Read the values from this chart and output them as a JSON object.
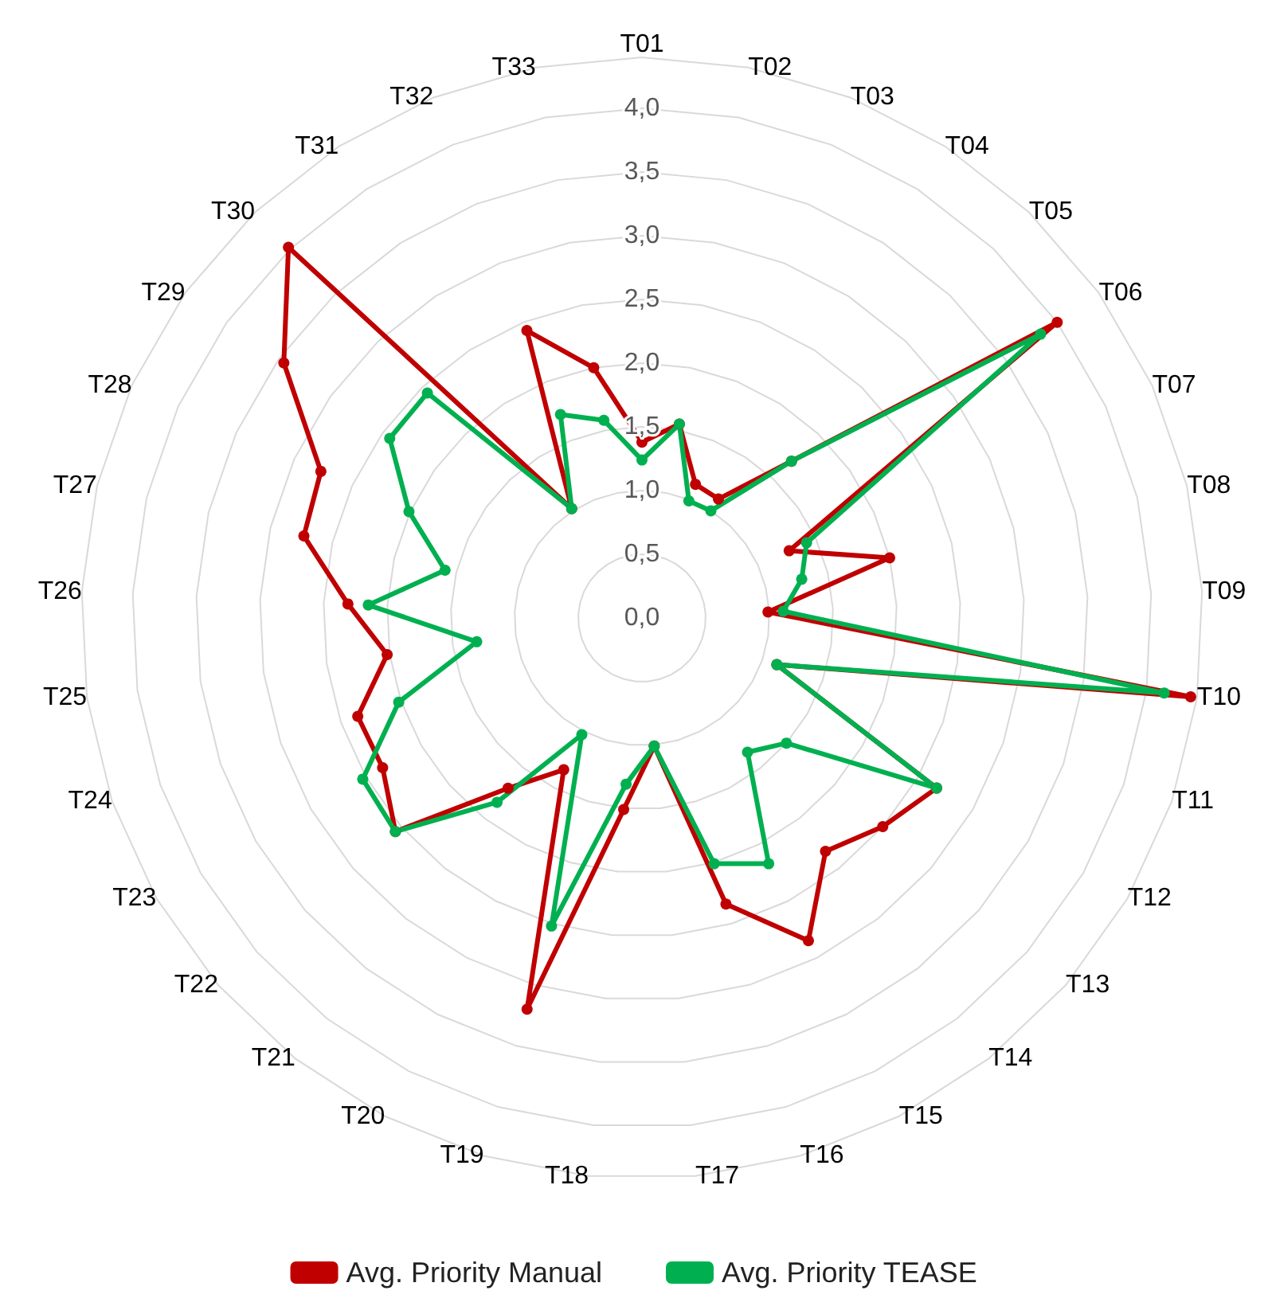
{
  "chart_data": {
    "type": "radar",
    "categories": [
      "T01",
      "T02",
      "T03",
      "T04",
      "T05",
      "T06",
      "T07",
      "T08",
      "T09",
      "T10",
      "T11",
      "T12",
      "T13",
      "T14",
      "T15",
      "T16",
      "T17",
      "T18",
      "T19",
      "T20",
      "T21",
      "T22",
      "T23",
      "T24",
      "T25",
      "T26",
      "T27",
      "T28",
      "T29",
      "T30",
      "T31",
      "T32",
      "T33"
    ],
    "series": [
      {
        "name": "Avg. Priority Manual",
        "color": "#c00000",
        "values": [
          1.38,
          1.55,
          1.13,
          1.11,
          1.7,
          4.0,
          1.27,
          2.0,
          0.99,
          4.35,
          1.12,
          2.67,
          2.5,
          2.33,
          2.85,
          2.34,
          1.01,
          1.51,
          3.2,
          1.34,
          1.7,
          2.56,
          2.35,
          2.36,
          2.02,
          2.31,
          2.73,
          2.77,
          3.45,
          4.02,
          1.02,
          2.43,
          2.0
        ]
      },
      {
        "name": "Avg. Priority TEASE",
        "color": "#00b050",
        "values": [
          1.24,
          1.55,
          0.99,
          1.0,
          1.7,
          3.84,
          1.42,
          1.29,
          1.11,
          4.14,
          1.12,
          2.67,
          1.5,
          1.34,
          2.17,
          2.01,
          1.01,
          1.31,
          2.52,
          1.03,
          1.84,
          2.56,
          2.53,
          2.02,
          1.31,
          2.15,
          1.59,
          2.01,
          2.43,
          2.44,
          1.02,
          1.72,
          1.58
        ]
      }
    ],
    "ylim": [
      0,
      4.4
    ],
    "yticks": [
      {
        "value": 0,
        "label": "0,0"
      },
      {
        "value": 0.5,
        "label": "0,5"
      },
      {
        "value": 1,
        "label": "1,0"
      },
      {
        "value": 1.5,
        "label": "1,5"
      },
      {
        "value": 2,
        "label": "2,0"
      },
      {
        "value": 2.5,
        "label": "2,5"
      },
      {
        "value": 3,
        "label": "3,0"
      },
      {
        "value": 3.5,
        "label": "3,5"
      },
      {
        "value": 4,
        "label": "4,0"
      }
    ],
    "grid": true,
    "legend": "bottom",
    "marker": "circle"
  }
}
